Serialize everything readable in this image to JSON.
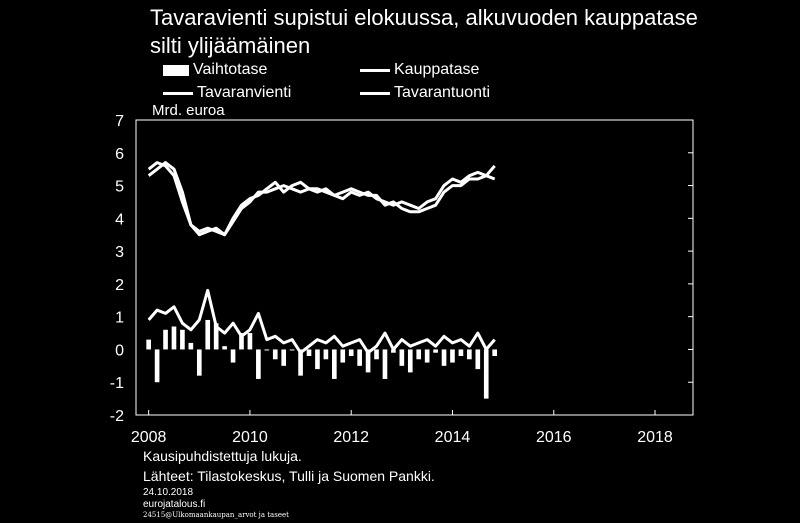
{
  "chart_data": {
    "type": "bar+line",
    "title": "Tavaravienti supistui elokuussa, alkuvuoden kauppatase silti ylijäämäinen",
    "ylabel": "Mrd. euroa",
    "ylim": [
      -2,
      7
    ],
    "yticks": [
      "7",
      "6",
      "5",
      "4",
      "3",
      "2",
      "1",
      "0",
      "-1",
      "-2"
    ],
    "xlim": [
      2007.75,
      2018.75
    ],
    "xticks": [
      {
        "label": "2008",
        "value": 2008
      },
      {
        "label": "2010",
        "value": 2010
      },
      {
        "label": "2012",
        "value": 2012
      },
      {
        "label": "2014",
        "value": 2014
      },
      {
        "label": "2016",
        "value": 2016
      },
      {
        "label": "2018",
        "value": 2018
      }
    ],
    "legend": [
      "Vaihtotase",
      "Kauppatase",
      "Tavaranvienti",
      "Tavarantuonti"
    ],
    "legend_placement": "top",
    "grid": false,
    "series": [
      {
        "name": "Tavaranvienti",
        "type": "line",
        "x_start": 2008.0,
        "step_months": 2,
        "values": [
          5.5,
          5.7,
          5.6,
          5.3,
          4.5,
          3.8,
          3.5,
          3.6,
          3.7,
          3.5,
          4.0,
          4.4,
          4.6,
          4.7,
          4.9,
          5.1,
          4.8,
          5.0,
          5.1,
          4.9,
          4.8,
          4.9,
          4.7,
          4.6,
          4.8,
          4.7,
          4.8,
          4.6,
          4.5,
          4.4,
          4.5,
          4.4,
          4.3,
          4.5,
          4.6,
          5.0,
          5.2,
          5.1,
          5.3,
          5.4,
          5.3,
          5.6
        ]
      },
      {
        "name": "Tavarantuonti",
        "type": "line",
        "x_start": 2008.0,
        "step_months": 2,
        "values": [
          5.3,
          5.5,
          5.7,
          5.5,
          4.8,
          3.8,
          3.6,
          3.7,
          3.6,
          3.5,
          3.9,
          4.3,
          4.5,
          4.8,
          4.8,
          4.9,
          5.0,
          4.9,
          4.8,
          4.9,
          4.9,
          4.8,
          4.7,
          4.8,
          4.9,
          4.8,
          4.7,
          4.7,
          4.4,
          4.5,
          4.3,
          4.2,
          4.2,
          4.3,
          4.4,
          4.8,
          5.0,
          5.0,
          5.2,
          5.2,
          5.3,
          5.2
        ]
      },
      {
        "name": "Kauppatase",
        "type": "line",
        "x_start": 2008.0,
        "step_months": 2,
        "values": [
          0.9,
          1.2,
          1.1,
          1.3,
          0.8,
          0.6,
          0.9,
          1.8,
          0.7,
          0.5,
          0.8,
          0.4,
          0.6,
          1.1,
          0.3,
          0.4,
          0.2,
          0.3,
          -0.1,
          0.1,
          0.3,
          0.2,
          0.4,
          0.1,
          0.2,
          0.3,
          -0.1,
          0.1,
          0.5,
          0.0,
          0.3,
          0.1,
          0.2,
          0.3,
          0.1,
          0.4,
          0.2,
          0.3,
          0.1,
          0.5,
          0.0,
          0.3
        ]
      },
      {
        "name": "Vaihtotase",
        "type": "bar",
        "x_start": 2008.0,
        "step_months": 2,
        "values": [
          0.3,
          -1.0,
          0.6,
          0.7,
          0.6,
          0.2,
          -0.8,
          0.9,
          0.8,
          0.1,
          -0.4,
          0.5,
          0.5,
          -0.9,
          0.0,
          -0.3,
          -0.5,
          0.0,
          -0.8,
          -0.2,
          -0.6,
          -0.3,
          -0.9,
          -0.4,
          -0.2,
          -0.5,
          -0.7,
          -0.3,
          -0.9,
          -0.1,
          -0.5,
          -0.7,
          -0.3,
          -0.4,
          -0.1,
          -0.5,
          -0.4,
          -0.2,
          -0.3,
          -0.6,
          -1.5,
          -0.2
        ]
      }
    ]
  },
  "footer": {
    "note": "Kausipuhdistettuja lukuja.",
    "sources": "Lähteet: Tilastokeskus, Tulli ja Suomen Pankki.",
    "date": "24.10.2018",
    "site": "eurojatalous.fi",
    "code": "24515@Ulkomaankaupan_arvot ja taseet"
  }
}
